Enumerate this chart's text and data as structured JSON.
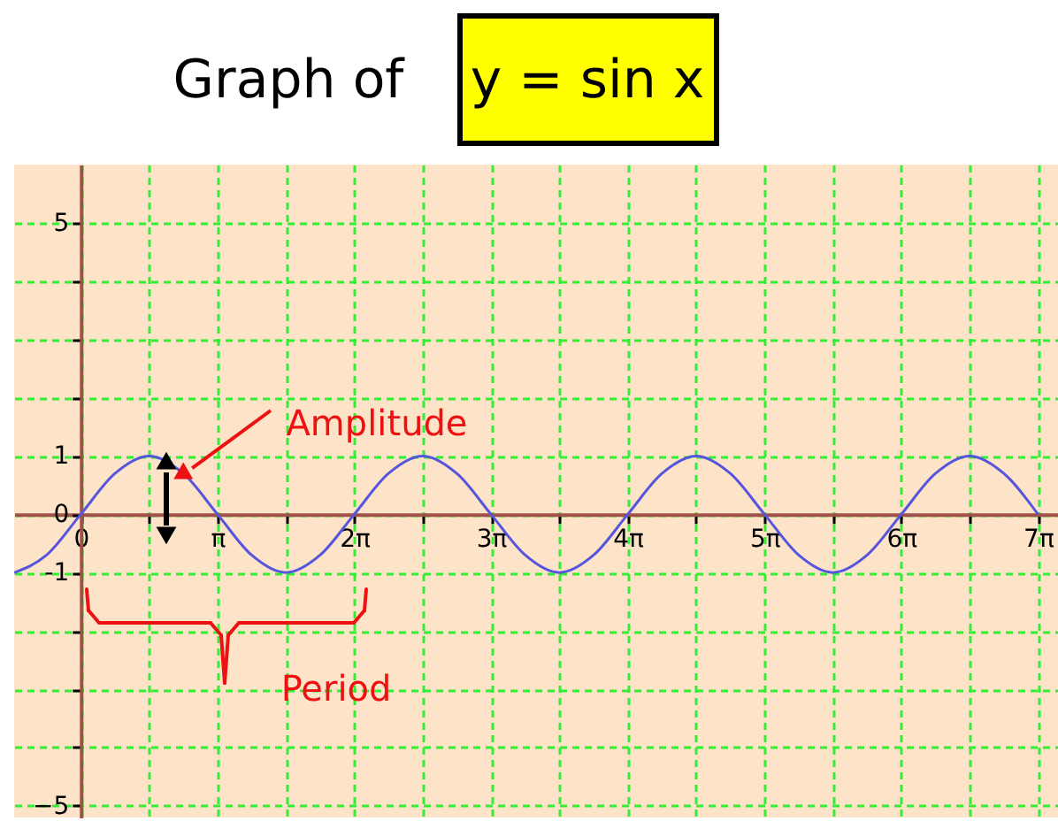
{
  "chart_data": {
    "type": "line",
    "title": "Graph of",
    "subtitle": "y = sin x",
    "x": [
      -1.53,
      -0.7854,
      0,
      0.7854,
      1.5708,
      2.3562,
      3.1416,
      3.927,
      4.7124,
      5.4978,
      6.2832,
      7.0686,
      7.854,
      8.6394,
      9.4248,
      10.2102,
      10.9956,
      11.781,
      12.5664,
      13.3518,
      14.1372,
      14.9226,
      15.708,
      16.4934,
      17.2788,
      18.0642,
      18.8496,
      19.635,
      20.4204,
      21.2058,
      21.9911
    ],
    "series": [
      {
        "color": "#5555dd",
        "values": [
          -1,
          -0.7,
          0,
          0.7,
          1,
          0.7,
          0,
          -0.7,
          -1,
          -0.7,
          0,
          0.7,
          1,
          0.7,
          0,
          -0.7,
          -1,
          -0.7,
          0,
          0.7,
          1,
          0.7,
          0,
          -0.7,
          -1,
          -0.7,
          0,
          0.7,
          1,
          0.7,
          0
        ]
      }
    ],
    "xlim": [
      -1.53,
      22.45
    ],
    "ylim": [
      -5.2,
      6
    ],
    "xticks": [
      {
        "value": 0,
        "label": "0"
      },
      {
        "value": 1.5708,
        "label": null
      },
      {
        "value": 3.1416,
        "label": "π"
      },
      {
        "value": 4.7124,
        "label": null
      },
      {
        "value": 6.2832,
        "label": "2π"
      },
      {
        "value": 7.854,
        "label": null
      },
      {
        "value": 9.4248,
        "label": "3π"
      },
      {
        "value": 10.9956,
        "label": null
      },
      {
        "value": 12.5664,
        "label": "4π"
      },
      {
        "value": 14.1372,
        "label": null
      },
      {
        "value": 15.708,
        "label": "5π"
      },
      {
        "value": 17.2788,
        "label": null
      },
      {
        "value": 18.8496,
        "label": "6π"
      },
      {
        "value": 20.4204,
        "label": null
      },
      {
        "value": 21.9911,
        "label": "7π"
      }
    ],
    "yticks": [
      {
        "value": -5,
        "label": "−5"
      },
      {
        "value": -4,
        "label": null
      },
      {
        "value": -3,
        "label": null
      },
      {
        "value": -2,
        "label": null
      },
      -1,
      0,
      1,
      {
        "value": 2,
        "label": null
      },
      {
        "value": 3,
        "label": null
      },
      {
        "value": 4,
        "label": null
      },
      5
    ],
    "grid": true,
    "marker": "none",
    "line_style": "solid",
    "annotations": [
      {
        "text": "Amplitude",
        "x": 2.3562,
        "y": 0.7
      },
      "Period"
    ]
  }
}
